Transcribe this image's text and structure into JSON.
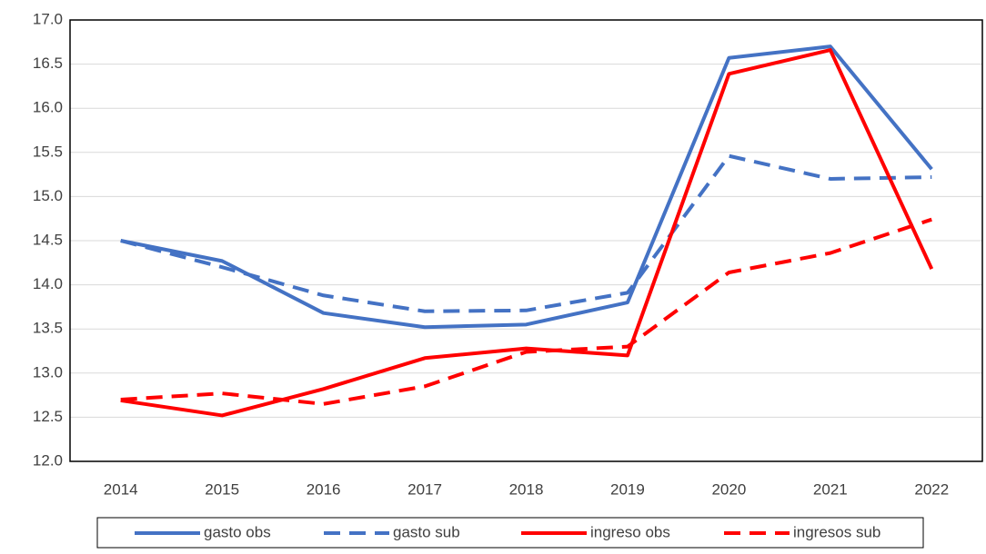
{
  "chart_data": {
    "type": "line",
    "categories": [
      "2014",
      "2015",
      "2016",
      "2017",
      "2018",
      "2019",
      "2020",
      "2021",
      "2022"
    ],
    "series": [
      {
        "name": "gasto obs",
        "color": "#4472c4",
        "dashed": false,
        "values": [
          14.5,
          14.27,
          13.68,
          13.52,
          13.55,
          13.8,
          16.57,
          16.7,
          15.31
        ]
      },
      {
        "name": "gasto sub",
        "color": "#4472c4",
        "dashed": true,
        "values": [
          14.5,
          14.2,
          13.88,
          13.7,
          13.71,
          13.91,
          15.46,
          15.2,
          15.22
        ]
      },
      {
        "name": "ingreso obs",
        "color": "#ff0000",
        "dashed": false,
        "values": [
          12.69,
          12.52,
          12.82,
          13.17,
          13.28,
          13.2,
          16.39,
          16.66,
          14.18
        ]
      },
      {
        "name": "ingresos sub",
        "color": "#ff0000",
        "dashed": true,
        "values": [
          12.7,
          12.77,
          12.65,
          12.85,
          13.24,
          13.3,
          14.14,
          14.36,
          14.74
        ]
      }
    ],
    "ylim": [
      12,
      17
    ],
    "yticks": [
      {
        "value": 12,
        "label": "12.0"
      },
      {
        "value": 12.5,
        "label": "12.5"
      },
      {
        "value": 13,
        "label": "13.0"
      },
      {
        "value": 13.5,
        "label": "13.5"
      },
      {
        "value": 14,
        "label": "14.0"
      },
      {
        "value": 14.5,
        "label": "14.5"
      },
      {
        "value": 15,
        "label": "15.0"
      },
      {
        "value": 15.5,
        "label": "15.5"
      },
      {
        "value": 16,
        "label": "16.0"
      },
      {
        "value": 16.5,
        "label": "16.5"
      },
      {
        "value": 17,
        "label": "17.0"
      }
    ],
    "grid": true,
    "legend": "bottom"
  }
}
